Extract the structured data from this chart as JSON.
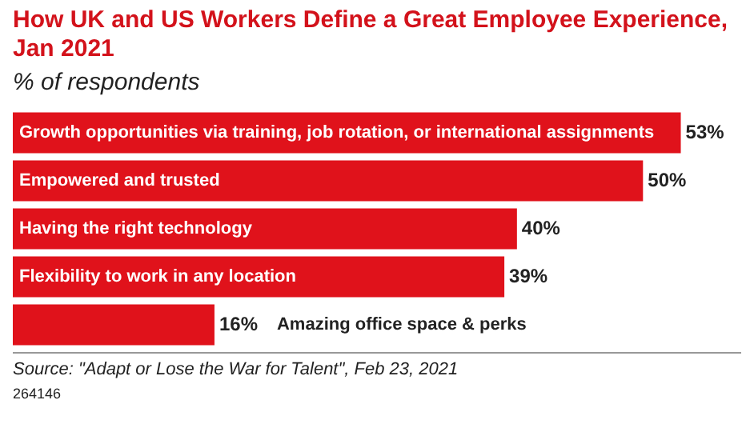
{
  "chart_data": {
    "type": "bar",
    "orientation": "horizontal",
    "title": "How UK and US Workers Define a Great Employee Experience, Jan 2021",
    "subtitle": "% of respondents",
    "categories": [
      "Growth opportunities via training, job rotation, or international assignments",
      "Empowered and trusted",
      "Having the right technology",
      "Flexibility to work in any location",
      "Amazing office space & perks"
    ],
    "values": [
      53,
      50,
      40,
      39,
      16
    ],
    "color": "#e0121b",
    "value_labels": [
      "53%",
      "50%",
      "40%",
      "39%",
      "16%"
    ],
    "legend": false,
    "annotations": [
      "Source: \"Adapt or Lose the War for Talent\", Feb 23, 2021",
      "264146"
    ]
  }
}
